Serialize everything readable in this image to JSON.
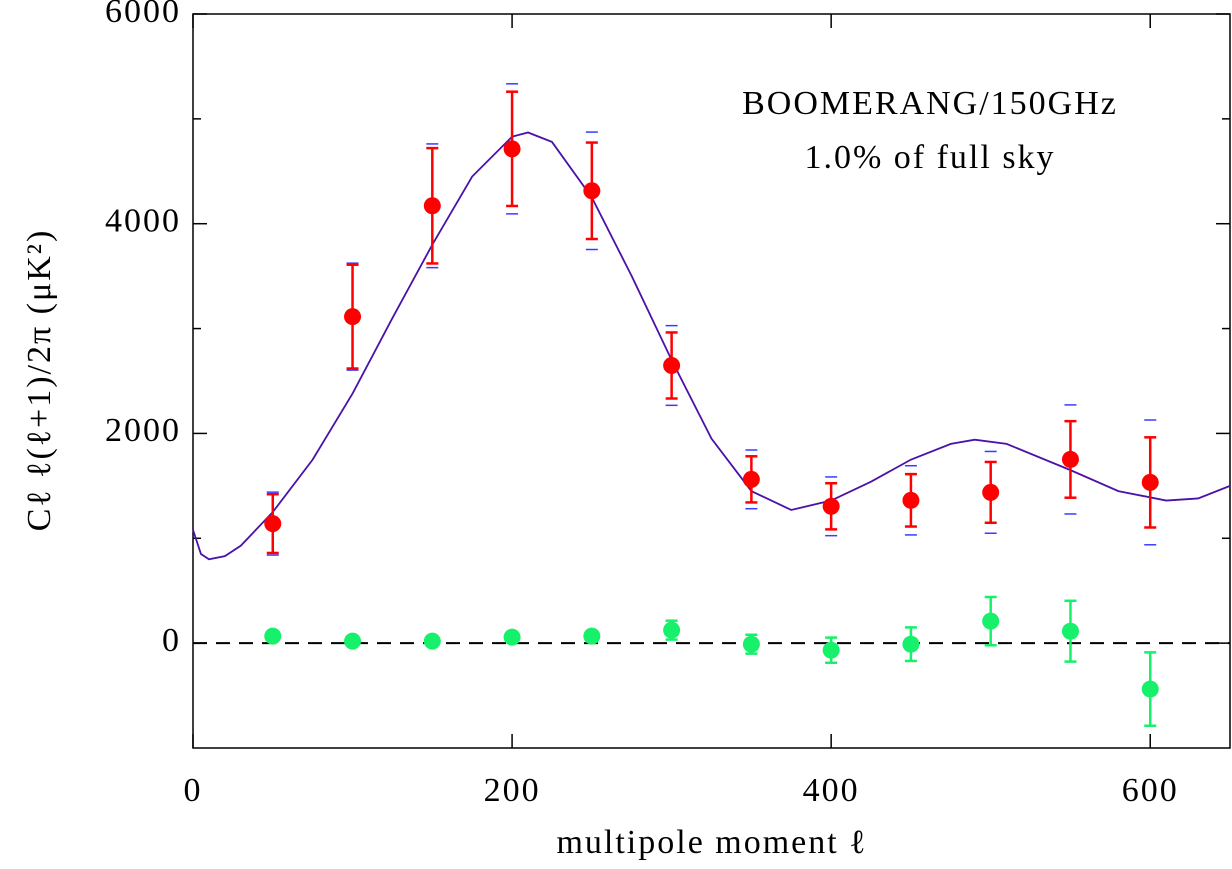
{
  "chart_data": {
    "type": "scatter",
    "annotations": [
      "BOOMERANG/150GHz",
      "1.0% of full sky"
    ],
    "xlabel": "multipole moment ℓ",
    "ylabel": "Cℓ ℓ(ℓ+1)/2π (μK²)",
    "xlim": [
      0,
      650
    ],
    "ylim": [
      -1000,
      6000
    ],
    "xticks": [
      0,
      200,
      400,
      600
    ],
    "yticks": [
      0,
      2000,
      4000,
      6000
    ],
    "yminorticks": [
      1000,
      3000,
      5000
    ],
    "hline": 0,
    "x": [
      50,
      100,
      150,
      200,
      250,
      300,
      350,
      400,
      450,
      500,
      550,
      600
    ],
    "series": [
      {
        "color": "#ff0000",
        "outer_color": "#3b3bff",
        "values": [
          1140,
          3114,
          4171,
          4714,
          4314,
          2648,
          1562,
          1305,
          1362,
          1438,
          1752,
          1533
        ],
        "errors": [
          280,
          495,
          550,
          545,
          460,
          315,
          220,
          220,
          250,
          290,
          365,
          430
        ],
        "outer_errors": [
          300,
          510,
          590,
          620,
          560,
          380,
          280,
          280,
          330,
          390,
          520,
          595
        ]
      },
      {
        "color": "#17f06a",
        "values": [
          67,
          19,
          19,
          57,
          67,
          124,
          -10,
          -67,
          -10,
          210,
          114,
          -438
        ],
        "errors": [
          20,
          20,
          20,
          30,
          50,
          90,
          90,
          120,
          160,
          230,
          290,
          350
        ]
      }
    ],
    "curve": {
      "color": "#4a12a8",
      "x": [
        0,
        5,
        10,
        20,
        30,
        50,
        75,
        100,
        125,
        150,
        175,
        200,
        210,
        225,
        250,
        275,
        300,
        325,
        350,
        375,
        400,
        425,
        450,
        475,
        490,
        510,
        550,
        580,
        610,
        630,
        650
      ],
      "values": [
        1080,
        850,
        800,
        830,
        930,
        1250,
        1750,
        2380,
        3100,
        3800,
        4450,
        4830,
        4870,
        4780,
        4250,
        3500,
        2700,
        1950,
        1450,
        1270,
        1360,
        1540,
        1750,
        1900,
        1940,
        1900,
        1650,
        1450,
        1360,
        1380,
        1500
      ]
    }
  }
}
